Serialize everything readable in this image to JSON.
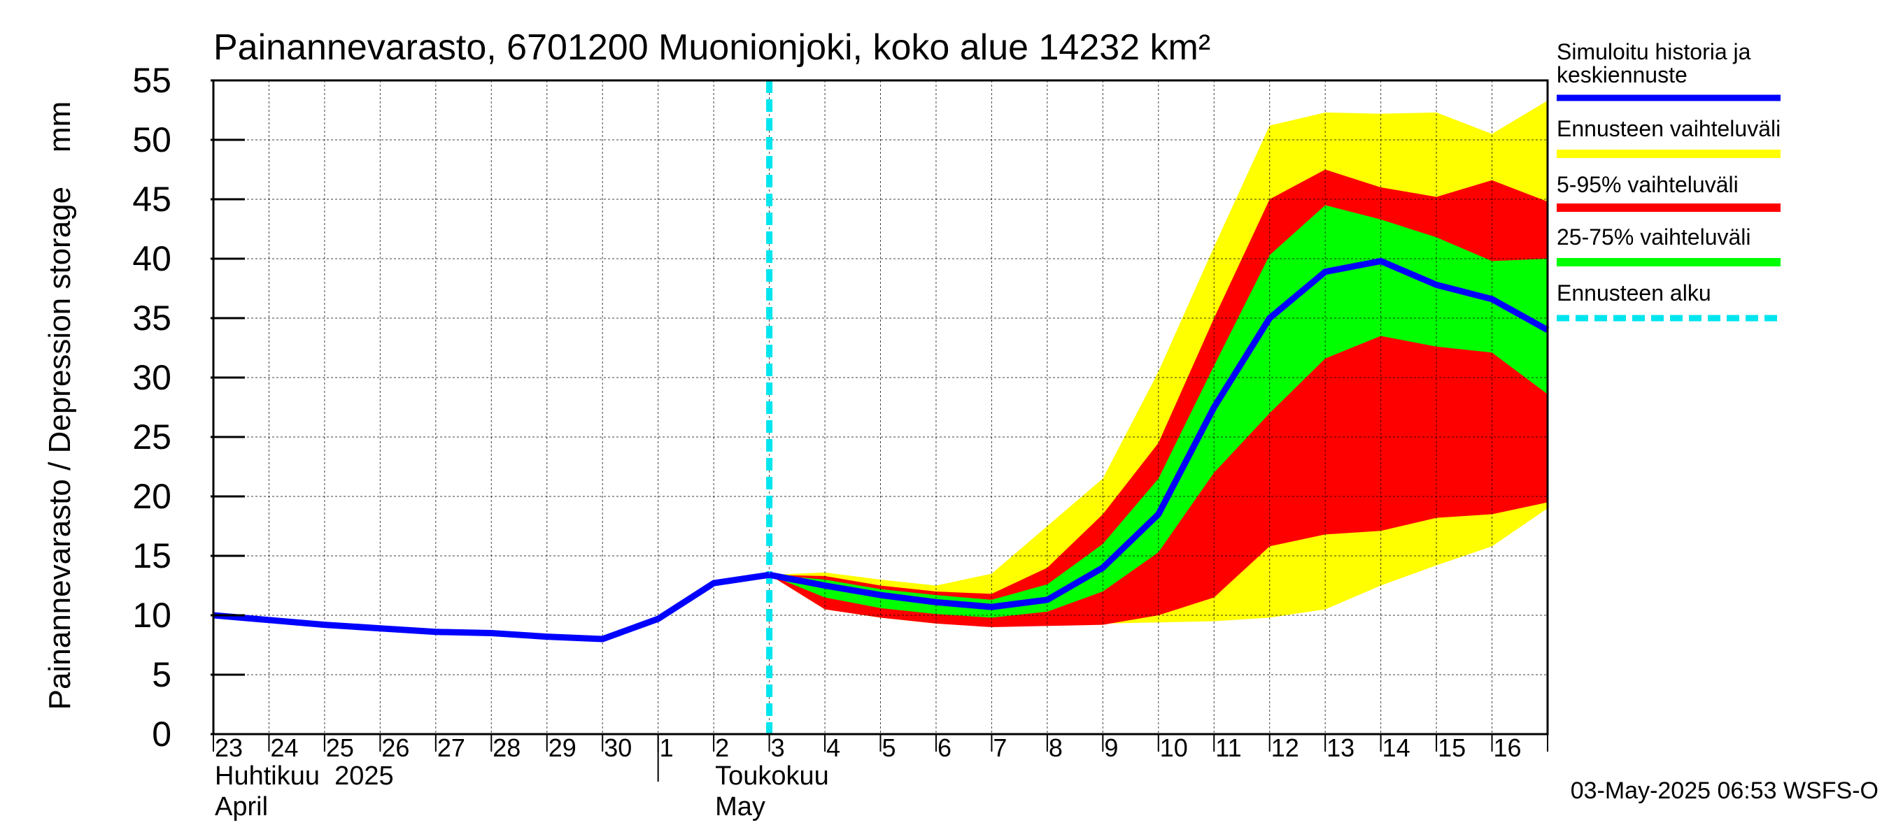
{
  "chart_data": {
    "type": "area",
    "title": "Painannevarasto, 6701200 Muonionjoki, koko alue 14232 km²",
    "ylabel": "Painannevarasto / Depression storage    mm",
    "ylim": [
      0,
      55
    ],
    "yticks": [
      "0",
      "5",
      "10",
      "15",
      "20",
      "25",
      "30",
      "35",
      "40",
      "45",
      "50",
      "55"
    ],
    "xlim_days": [
      0,
      24
    ],
    "day_labels": [
      "23",
      "24",
      "25",
      "26",
      "27",
      "28",
      "29",
      "30",
      "1",
      "2",
      "3",
      "4",
      "5",
      "6",
      "7",
      "8",
      "9",
      "10",
      "11",
      "12",
      "13",
      "14",
      "15",
      "16"
    ],
    "month_labels": [
      {
        "line1": "Huhtikuu  2025",
        "line2": "April",
        "day": 0
      },
      {
        "line1": "Toukokuu",
        "line2": "May",
        "day": 9
      }
    ],
    "month_divider_day": 8,
    "forecast_start_day": 10,
    "legend": {
      "history": "Simuloitu historia ja keskiennuste",
      "full_range": "Ennusteen vaihteluväli",
      "p5_95": "5-95% vaihteluväli",
      "p25_75": "25-75% vaihteluväli",
      "forecast_start": "Ennusteen alku"
    },
    "colors": {
      "history": "#0000ff",
      "full_range": "#ffff00",
      "p5_95": "#ff0000",
      "p25_75": "#00ff00",
      "forecast_start": "#00e5ee"
    },
    "series": {
      "history": {
        "x": [
          0,
          1,
          2,
          3,
          4,
          5,
          6,
          7,
          8,
          9,
          10
        ],
        "y": [
          10.0,
          9.6,
          9.2,
          8.9,
          8.6,
          8.5,
          8.2,
          8.0,
          9.7,
          12.7,
          13.4
        ]
      },
      "median": {
        "x": [
          10,
          11,
          12,
          13,
          14,
          15,
          16,
          17,
          18,
          19,
          20,
          21,
          22,
          23,
          24
        ],
        "y": [
          13.4,
          12.5,
          11.7,
          11.1,
          10.7,
          11.3,
          14.0,
          18.5,
          27.5,
          35.0,
          38.9,
          39.8,
          37.8,
          36.6,
          34.0
        ]
      },
      "full_range": {
        "x": [
          10,
          11,
          12,
          13,
          14,
          15,
          16,
          17,
          18,
          19,
          20,
          21,
          22,
          23,
          24
        ],
        "upper": [
          13.4,
          13.6,
          13.0,
          12.5,
          13.5,
          17.5,
          21.5,
          30.5,
          41.0,
          51.2,
          52.3,
          52.2,
          52.3,
          50.5,
          53.3
        ],
        "lower": [
          13.4,
          10.5,
          9.8,
          9.3,
          9.1,
          9.2,
          9.3,
          9.4,
          9.5,
          9.8,
          10.5,
          12.5,
          14.2,
          15.8,
          19.0
        ]
      },
      "p5_95": {
        "x": [
          10,
          11,
          12,
          13,
          14,
          15,
          16,
          17,
          18,
          19,
          20,
          21,
          22,
          23,
          24
        ],
        "upper": [
          13.4,
          13.3,
          12.5,
          12.0,
          11.8,
          14.0,
          18.5,
          24.5,
          35.0,
          45.0,
          47.5,
          46.0,
          45.2,
          46.6,
          44.8
        ],
        "lower": [
          13.4,
          10.5,
          9.8,
          9.3,
          9.0,
          9.1,
          9.2,
          10.0,
          11.5,
          15.8,
          16.8,
          17.1,
          18.2,
          18.5,
          19.5
        ]
      },
      "p25_75": {
        "x": [
          10,
          11,
          12,
          13,
          14,
          15,
          16,
          17,
          18,
          19,
          20,
          21,
          22,
          23,
          24
        ],
        "upper": [
          13.4,
          13.0,
          12.2,
          11.7,
          11.3,
          12.6,
          16.0,
          21.5,
          31.0,
          40.3,
          44.5,
          43.3,
          41.8,
          39.8,
          40.0
        ],
        "lower": [
          13.4,
          11.5,
          10.6,
          10.1,
          9.8,
          10.3,
          12.0,
          15.3,
          22.0,
          27.0,
          31.6,
          33.5,
          32.6,
          32.1,
          28.6
        ]
      }
    }
  },
  "footer": "03-May-2025 06:53 WSFS-O"
}
